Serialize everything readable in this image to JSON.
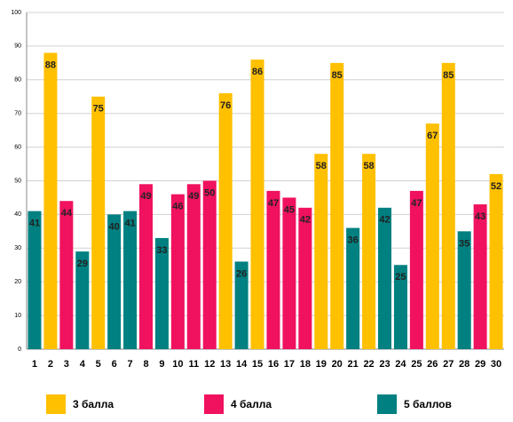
{
  "chart_data": {
    "type": "bar",
    "categories": [
      "1",
      "2",
      "3",
      "4",
      "5",
      "6",
      "7",
      "8",
      "9",
      "10",
      "11",
      "12",
      "13",
      "14",
      "15",
      "16",
      "17",
      "18",
      "19",
      "20",
      "21",
      "22",
      "23",
      "24",
      "25",
      "26",
      "27",
      "28",
      "29",
      "30"
    ],
    "series": [
      {
        "name": "3 балла",
        "color": "#ffc000",
        "values": [
          null,
          88,
          null,
          null,
          75,
          null,
          null,
          null,
          null,
          null,
          null,
          null,
          76,
          null,
          86,
          null,
          null,
          null,
          58,
          85,
          null,
          58,
          null,
          null,
          null,
          67,
          85,
          null,
          null,
          52
        ]
      },
      {
        "name": "4 балла",
        "color": "#f0115f",
        "values": [
          null,
          null,
          44,
          null,
          null,
          null,
          null,
          49,
          null,
          46,
          49,
          50,
          null,
          null,
          null,
          47,
          45,
          42,
          null,
          null,
          null,
          null,
          null,
          null,
          47,
          null,
          null,
          null,
          43,
          null
        ]
      },
      {
        "name": "5 баллов",
        "color": "#008080",
        "values": [
          41,
          null,
          null,
          29,
          null,
          40,
          41,
          null,
          33,
          null,
          null,
          null,
          null,
          26,
          null,
          null,
          null,
          null,
          null,
          null,
          36,
          null,
          42,
          25,
          null,
          null,
          null,
          35,
          null,
          null
        ]
      }
    ],
    "ylim": [
      0,
      100
    ],
    "yticks": [
      0,
      10,
      20,
      30,
      40,
      50,
      60,
      70,
      80,
      90,
      100
    ],
    "grid": true,
    "legend": "bottom"
  }
}
